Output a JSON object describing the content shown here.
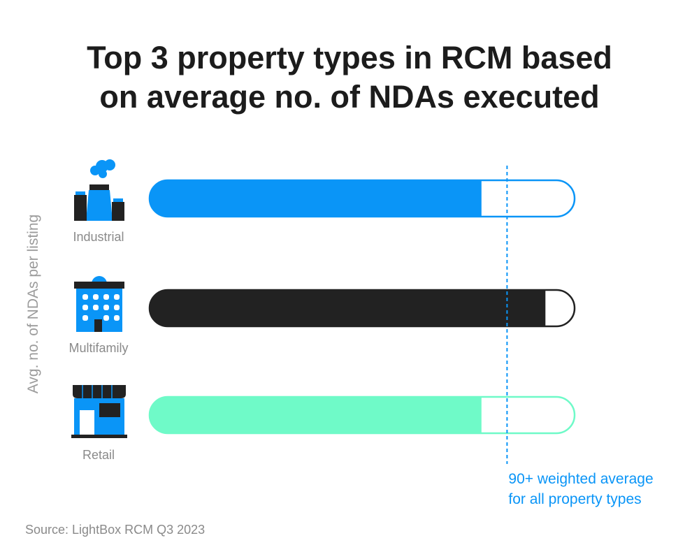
{
  "title_line1": "Top 3 property types in RCM based",
  "title_line2": "on average no. of NDAs executed",
  "source": "Source: LightBox RCM Q3 2023",
  "chart_data": {
    "type": "bar",
    "orientation": "horizontal",
    "ylabel": "Avg. no. of NDAs per listing",
    "categories": [
      "Industrial",
      "Multifamily",
      "Retail"
    ],
    "values": [
      78,
      93,
      78
    ],
    "xlim": [
      0,
      100
    ],
    "colors": [
      "#0a95f7",
      "#222222",
      "#6ffac8"
    ],
    "icons": [
      "factory-icon",
      "apartment-building-icon",
      "storefront-icon"
    ],
    "reference_line": {
      "value": 84,
      "color": "#0a95f7",
      "label_line1": "90+ weighted average",
      "label_line2": "for all property types"
    }
  }
}
